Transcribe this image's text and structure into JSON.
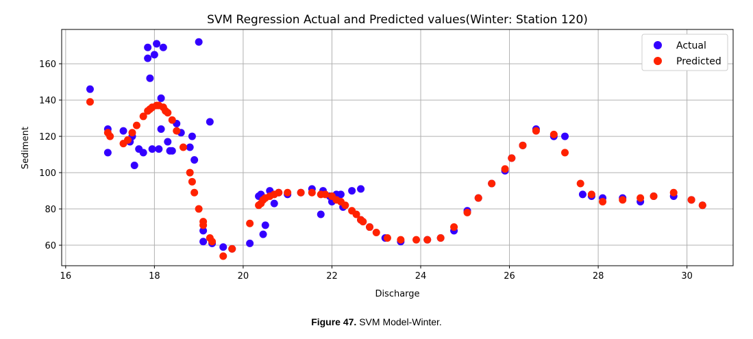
{
  "chart_data": {
    "type": "scatter",
    "title": "SVM Regression Actual and Predicted values(Winter: Station 120)",
    "xlabel": "Discharge",
    "ylabel": "Sediment",
    "xlim": [
      15.91,
      31.04
    ],
    "ylim": [
      48.7,
      178.9
    ],
    "xticks": [
      16,
      18,
      20,
      22,
      24,
      26,
      28,
      30
    ],
    "yticks": [
      60,
      80,
      100,
      120,
      140,
      160
    ],
    "grid": true,
    "legend_position": "top-right",
    "series": [
      {
        "name": "Actual",
        "color": "#3300ff",
        "points": [
          [
            16.55,
            146
          ],
          [
            16.95,
            124
          ],
          [
            16.95,
            111
          ],
          [
            17.3,
            123
          ],
          [
            17.45,
            117
          ],
          [
            17.5,
            120
          ],
          [
            17.55,
            104
          ],
          [
            17.65,
            113
          ],
          [
            17.75,
            111
          ],
          [
            17.85,
            169
          ],
          [
            17.85,
            163
          ],
          [
            17.9,
            152
          ],
          [
            17.95,
            113
          ],
          [
            18.0,
            165
          ],
          [
            18.05,
            171
          ],
          [
            18.1,
            113
          ],
          [
            18.15,
            141
          ],
          [
            18.15,
            124
          ],
          [
            18.2,
            169
          ],
          [
            18.3,
            117
          ],
          [
            18.35,
            112
          ],
          [
            18.4,
            112
          ],
          [
            18.5,
            127
          ],
          [
            18.6,
            122
          ],
          [
            18.8,
            114
          ],
          [
            18.85,
            120
          ],
          [
            18.9,
            107
          ],
          [
            19.0,
            172
          ],
          [
            19.1,
            68
          ],
          [
            19.1,
            62
          ],
          [
            19.25,
            128
          ],
          [
            19.3,
            61
          ],
          [
            19.55,
            59
          ],
          [
            19.75,
            58
          ],
          [
            20.15,
            61
          ],
          [
            20.35,
            87
          ],
          [
            20.4,
            88
          ],
          [
            20.45,
            66
          ],
          [
            20.5,
            71
          ],
          [
            20.6,
            90
          ],
          [
            20.7,
            83
          ],
          [
            20.8,
            89
          ],
          [
            21.0,
            88
          ],
          [
            21.3,
            89
          ],
          [
            21.55,
            91
          ],
          [
            21.75,
            77
          ],
          [
            21.8,
            90
          ],
          [
            21.95,
            87
          ],
          [
            22.0,
            84
          ],
          [
            22.1,
            88
          ],
          [
            22.2,
            88
          ],
          [
            22.25,
            81
          ],
          [
            22.45,
            90
          ],
          [
            22.65,
            74
          ],
          [
            22.65,
            91
          ],
          [
            22.85,
            70
          ],
          [
            23.2,
            64
          ],
          [
            23.55,
            62
          ],
          [
            24.15,
            63
          ],
          [
            24.45,
            64
          ],
          [
            24.75,
            68
          ],
          [
            25.05,
            79
          ],
          [
            25.3,
            86
          ],
          [
            25.6,
            94
          ],
          [
            25.9,
            101
          ],
          [
            26.05,
            108
          ],
          [
            26.3,
            115
          ],
          [
            26.6,
            124
          ],
          [
            27.0,
            120
          ],
          [
            27.25,
            120
          ],
          [
            27.65,
            88
          ],
          [
            27.85,
            87
          ],
          [
            28.1,
            86
          ],
          [
            28.55,
            86
          ],
          [
            28.95,
            84
          ],
          [
            29.25,
            87
          ],
          [
            29.7,
            87
          ],
          [
            30.1,
            85
          ],
          [
            30.35,
            82
          ]
        ]
      },
      {
        "name": "Predicted",
        "color": "#ff2200",
        "points": [
          [
            16.55,
            139
          ],
          [
            16.95,
            122
          ],
          [
            17.0,
            120
          ],
          [
            17.3,
            116
          ],
          [
            17.4,
            118
          ],
          [
            17.5,
            122
          ],
          [
            17.6,
            126
          ],
          [
            17.75,
            131
          ],
          [
            17.85,
            134
          ],
          [
            17.9,
            135
          ],
          [
            17.95,
            136
          ],
          [
            18.05,
            137
          ],
          [
            18.1,
            137
          ],
          [
            18.2,
            136
          ],
          [
            18.25,
            134
          ],
          [
            18.3,
            133
          ],
          [
            18.4,
            129
          ],
          [
            18.5,
            123
          ],
          [
            18.65,
            114
          ],
          [
            18.8,
            100
          ],
          [
            18.85,
            95
          ],
          [
            18.9,
            89
          ],
          [
            19.0,
            80
          ],
          [
            19.1,
            73
          ],
          [
            19.1,
            71
          ],
          [
            19.25,
            64
          ],
          [
            19.3,
            62
          ],
          [
            19.55,
            54
          ],
          [
            19.75,
            58
          ],
          [
            20.15,
            72
          ],
          [
            20.35,
            82
          ],
          [
            20.4,
            83
          ],
          [
            20.45,
            85
          ],
          [
            20.5,
            86
          ],
          [
            20.6,
            87
          ],
          [
            20.7,
            88
          ],
          [
            20.8,
            89
          ],
          [
            21.0,
            89
          ],
          [
            21.3,
            89
          ],
          [
            21.55,
            89
          ],
          [
            21.75,
            88
          ],
          [
            21.85,
            88
          ],
          [
            22.0,
            87
          ],
          [
            22.1,
            85
          ],
          [
            22.2,
            84
          ],
          [
            22.3,
            82
          ],
          [
            22.45,
            79
          ],
          [
            22.55,
            77
          ],
          [
            22.65,
            74
          ],
          [
            22.7,
            73
          ],
          [
            22.85,
            70
          ],
          [
            23.0,
            67
          ],
          [
            23.25,
            64
          ],
          [
            23.55,
            63
          ],
          [
            23.9,
            63
          ],
          [
            24.15,
            63
          ],
          [
            24.45,
            64
          ],
          [
            24.75,
            70
          ],
          [
            25.05,
            78
          ],
          [
            25.3,
            86
          ],
          [
            25.6,
            94
          ],
          [
            25.9,
            102
          ],
          [
            26.05,
            108
          ],
          [
            26.3,
            115
          ],
          [
            26.6,
            123
          ],
          [
            27.0,
            121
          ],
          [
            27.25,
            111
          ],
          [
            27.6,
            94
          ],
          [
            27.85,
            88
          ],
          [
            28.1,
            84
          ],
          [
            28.55,
            85
          ],
          [
            28.95,
            86
          ],
          [
            29.25,
            87
          ],
          [
            29.7,
            89
          ],
          [
            30.1,
            85
          ],
          [
            30.35,
            82
          ]
        ]
      }
    ]
  },
  "caption": {
    "label": "Figure 47.",
    "text": " SVM Model-Winter."
  }
}
